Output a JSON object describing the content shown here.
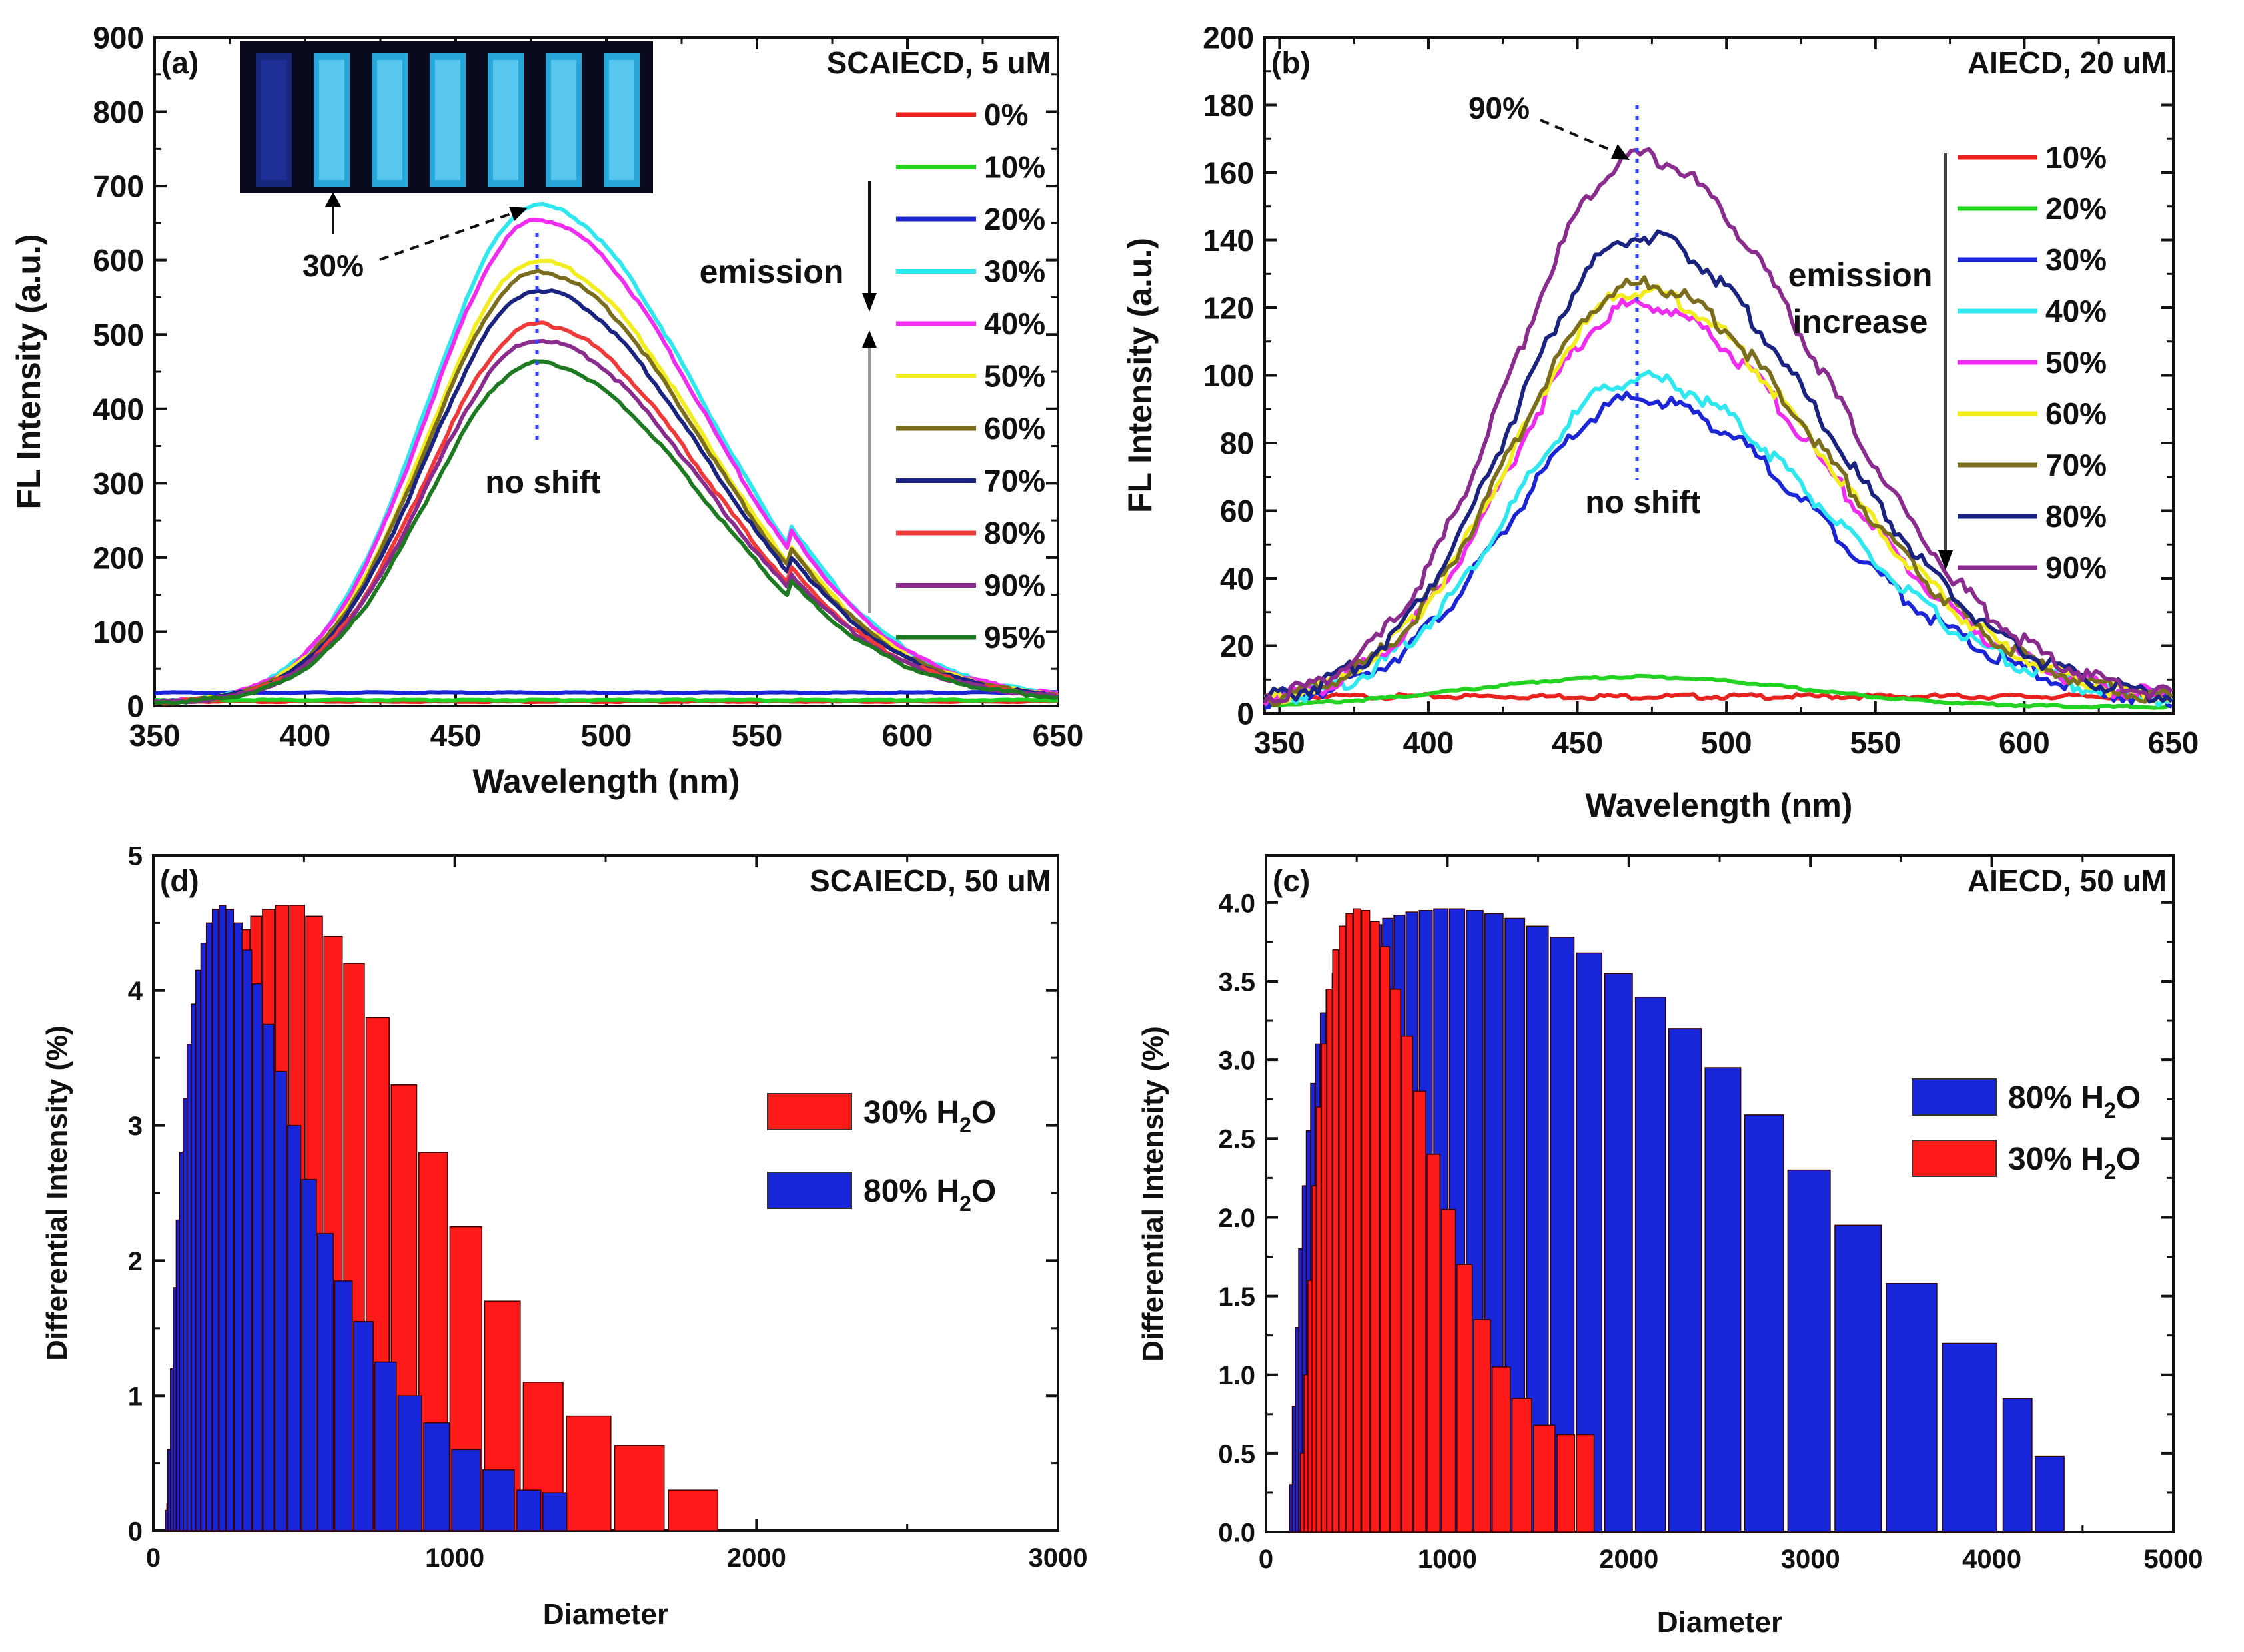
{
  "chart_data": [
    {
      "id": "a",
      "type": "line",
      "panel_label": "(a)",
      "title": "SCAIECD, 5 uM",
      "xlabel": "Wavelength  (nm)",
      "ylabel": "FL  Intensity  (a.u.)",
      "xlim": [
        350,
        650
      ],
      "ylim": [
        0,
        900
      ],
      "xticks": [
        350,
        400,
        450,
        500,
        550,
        600,
        650
      ],
      "yticks": [
        0,
        100,
        200,
        300,
        400,
        500,
        600,
        700,
        800,
        900
      ],
      "peak_nm": 477,
      "annotations": {
        "arrow_label": "30%",
        "no_shift": "no shift",
        "emission": "emission"
      },
      "inset": {
        "description_label": "",
        "cuvettes": 7
      },
      "series": [
        {
          "name": "0%",
          "color": "#e8231f",
          "kind": "flat",
          "level": 6
        },
        {
          "name": "10%",
          "color": "#22d322",
          "kind": "flat",
          "level": 8
        },
        {
          "name": "20%",
          "color": "#1c25d6",
          "kind": "flat",
          "level": 18
        },
        {
          "name": "30%",
          "color": "#2ee8f0",
          "kind": "peak",
          "peak": 670
        },
        {
          "name": "40%",
          "color": "#f02cf0",
          "kind": "peak",
          "peak": 650
        },
        {
          "name": "50%",
          "color": "#f2ee1e",
          "kind": "peak",
          "peak": 595
        },
        {
          "name": "60%",
          "color": "#7b6d1e",
          "kind": "peak",
          "peak": 580
        },
        {
          "name": "70%",
          "color": "#1b2380",
          "kind": "peak",
          "peak": 555
        },
        {
          "name": "80%",
          "color": "#f03a3a",
          "kind": "peak",
          "peak": 510
        },
        {
          "name": "90%",
          "color": "#8a2b8e",
          "kind": "peak",
          "peak": 488
        },
        {
          "name": "95%",
          "color": "#1d7a20",
          "kind": "peak",
          "peak": 458
        }
      ]
    },
    {
      "id": "b",
      "type": "line",
      "panel_label": "(b)",
      "title": "AIECD, 20 uM",
      "xlabel": "Wavelength  (nm)",
      "ylabel": "FL  Intensity  (a.u.)",
      "xlim": [
        345,
        650
      ],
      "ylim": [
        0,
        200
      ],
      "xticks": [
        350,
        400,
        450,
        500,
        550,
        600,
        650
      ],
      "yticks": [
        0,
        20,
        40,
        60,
        80,
        100,
        120,
        140,
        160,
        180,
        200
      ],
      "peak_nm": 470,
      "annotations": {
        "arrow_label": "90%",
        "no_shift": "no shift",
        "emission_line1": "emission",
        "emission_line2": "increase"
      },
      "series": [
        {
          "name": "10%",
          "color": "#e8231f",
          "kind": "flat",
          "level": 5
        },
        {
          "name": "20%",
          "color": "#22d322",
          "kind": "lowpeak",
          "peak": 9
        },
        {
          "name": "30%",
          "color": "#1c25d6",
          "kind": "peak",
          "peak": 90
        },
        {
          "name": "40%",
          "color": "#2ee8f0",
          "kind": "peak",
          "peak": 96
        },
        {
          "name": "50%",
          "color": "#f02cf0",
          "kind": "peak",
          "peak": 118
        },
        {
          "name": "60%",
          "color": "#f2ee1e",
          "kind": "peak",
          "peak": 122
        },
        {
          "name": "70%",
          "color": "#7b6d1e",
          "kind": "peak",
          "peak": 124
        },
        {
          "name": "80%",
          "color": "#1b2380",
          "kind": "peak",
          "peak": 138
        },
        {
          "name": "90%",
          "color": "#8a2b8e",
          "kind": "peak",
          "peak": 162
        }
      ]
    },
    {
      "id": "d",
      "type": "bar",
      "panel_label": "(d)",
      "title": "SCAIECD, 50 uM",
      "xlabel": "Diameter",
      "ylabel": "Differential Intensity (%)",
      "xlim": [
        0,
        3000
      ],
      "ylim": [
        0,
        5
      ],
      "xticks": [
        0,
        1000,
        2000,
        3000
      ],
      "yticks": [
        0,
        1,
        2,
        3,
        4,
        5
      ],
      "series": [
        {
          "name": "30% H2O",
          "legend_main": "30% H",
          "legend_sub": "2",
          "legend_end": "O",
          "color": "#ff1a1a",
          "x": [
            45,
            55,
            65,
            76,
            87,
            100,
            113,
            128,
            145,
            163,
            183,
            205,
            230,
            258,
            289,
            323,
            362,
            405,
            453,
            506,
            566,
            632,
            706,
            789,
            881,
            984,
            1099,
            1227,
            1370,
            1530,
            1708
          ],
          "values": [
            0.2,
            0.5,
            0.9,
            1.3,
            1.8,
            2.3,
            2.7,
            3.1,
            3.4,
            3.7,
            3.9,
            4.1,
            4.25,
            4.35,
            4.45,
            4.55,
            4.6,
            4.63,
            4.63,
            4.55,
            4.4,
            4.2,
            3.8,
            3.3,
            2.8,
            2.25,
            1.7,
            1.1,
            0.85,
            0.63,
            0.3
          ]
        },
        {
          "name": "80% H2O",
          "legend_main": "80% H",
          "legend_sub": "2",
          "legend_end": "O",
          "color": "#1626d8",
          "x": [
            40,
            48,
            57,
            66,
            76,
            87,
            99,
            112,
            126,
            141,
            158,
            176,
            196,
            218,
            242,
            268,
            297,
            329,
            364,
            403,
            446,
            493,
            545,
            602,
            665,
            735,
            812,
            897,
            990,
            1093,
            1206,
            1292
          ],
          "values": [
            0.15,
            0.6,
            1.2,
            1.8,
            2.3,
            2.8,
            3.2,
            3.6,
            3.9,
            4.15,
            4.35,
            4.5,
            4.6,
            4.63,
            4.6,
            4.5,
            4.3,
            4.05,
            3.75,
            3.4,
            3.0,
            2.6,
            2.2,
            1.85,
            1.55,
            1.25,
            1.0,
            0.8,
            0.6,
            0.45,
            0.3,
            0.28
          ]
        }
      ]
    },
    {
      "id": "c",
      "type": "bar",
      "panel_label": "(c)",
      "title": "AIECD, 50 uM",
      "xlabel": "Diameter",
      "ylabel": "Differential Intensity (%)",
      "xlim": [
        0,
        5000
      ],
      "ylim": [
        0,
        4.3
      ],
      "xticks": [
        0,
        1000,
        2000,
        3000,
        4000,
        5000
      ],
      "yticks": [
        0,
        0.5,
        1.0,
        1.5,
        2.0,
        2.5,
        3.0,
        3.5,
        4.0
      ],
      "ytick_labels": [
        "0.0",
        "0.5",
        "1.0",
        "1.5",
        "2.0",
        "2.5",
        "3.0",
        "3.5",
        "4.0"
      ],
      "series": [
        {
          "name": "80% H2O",
          "legend_main": "80% H",
          "legend_sub": "2",
          "legend_end": "O",
          "color": "#1626d8",
          "x": [
            130,
            145,
            162,
            180,
            200,
            222,
            246,
            272,
            300,
            331,
            365,
            402,
            442,
            486,
            534,
            586,
            643,
            705,
            772,
            845,
            925,
            1011,
            1105,
            1207,
            1318,
            1438,
            1569,
            1712,
            1867,
            2036,
            2220,
            2420,
            2638,
            2876,
            3135,
            3418,
            3727,
            4062,
            4239
          ],
          "values": [
            0.3,
            0.8,
            1.3,
            1.8,
            2.2,
            2.55,
            2.85,
            3.1,
            3.3,
            3.45,
            3.55,
            3.65,
            3.72,
            3.78,
            3.82,
            3.86,
            3.9,
            3.92,
            3.94,
            3.95,
            3.96,
            3.96,
            3.95,
            3.93,
            3.9,
            3.85,
            3.78,
            3.68,
            3.55,
            3.4,
            3.2,
            2.95,
            2.65,
            2.3,
            1.95,
            1.58,
            1.2,
            0.85,
            0.48
          ]
        },
        {
          "name": "30% H2O",
          "legend_main": "30% H",
          "legend_sub": "2",
          "legend_end": "O",
          "color": "#ff1a1a",
          "x": [
            190,
            210,
            231,
            254,
            279,
            306,
            336,
            368,
            403,
            441,
            482,
            527,
            576,
            629,
            686,
            748,
            815,
            888,
            967,
            1053,
            1146,
            1247,
            1357,
            1476,
            1605,
            1712
          ],
          "values": [
            0.5,
            1.0,
            1.6,
            2.2,
            2.7,
            3.1,
            3.45,
            3.7,
            3.85,
            3.93,
            3.96,
            3.95,
            3.88,
            3.72,
            3.45,
            3.15,
            2.8,
            2.4,
            2.05,
            1.7,
            1.35,
            1.05,
            0.85,
            0.68,
            0.62,
            0.62
          ]
        }
      ]
    }
  ]
}
